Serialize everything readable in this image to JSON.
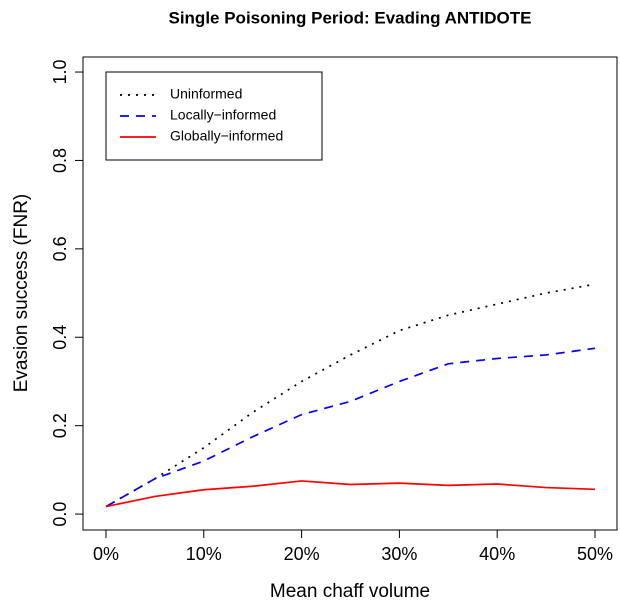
{
  "chart_data": {
    "type": "line",
    "title": "Single Poisoning Period: Evading ANTIDOTE",
    "x_label": "Mean chaff volume",
    "y_label": "Evasion success (FNR)",
    "x": [
      0,
      5,
      10,
      15,
      20,
      25,
      30,
      35,
      40,
      45,
      50
    ],
    "series": [
      {
        "name": "Uninformed",
        "color": "#000000",
        "style": "dotted",
        "values": [
          0.017,
          0.08,
          0.15,
          0.23,
          0.3,
          0.36,
          0.415,
          0.45,
          0.475,
          0.5,
          0.52
        ]
      },
      {
        "name": "Locally−informed",
        "color": "#0000ff",
        "style": "dashed",
        "values": [
          0.017,
          0.08,
          0.12,
          0.175,
          0.225,
          0.255,
          0.3,
          0.34,
          0.352,
          0.36,
          0.375
        ]
      },
      {
        "name": "Globally−informed",
        "color": "#ff0000",
        "style": "solid",
        "values": [
          0.017,
          0.04,
          0.055,
          0.063,
          0.075,
          0.067,
          0.07,
          0.065,
          0.068,
          0.06,
          0.056
        ]
      }
    ],
    "xlim": [
      -2.35,
      52.25
    ],
    "ylim": [
      -0.036,
      1.034
    ],
    "xticks": [
      {
        "value": 0,
        "label": "0%"
      },
      {
        "value": 10,
        "label": "10%"
      },
      {
        "value": 20,
        "label": "20%"
      },
      {
        "value": 30,
        "label": "30%"
      },
      {
        "value": 40,
        "label": "40%"
      },
      {
        "value": 50,
        "label": "50%"
      }
    ],
    "yticks": [
      {
        "value": 0,
        "label": "0.0"
      },
      0.2,
      0.4,
      0.6,
      0.8,
      {
        "value": 1,
        "label": "1.0"
      }
    ],
    "legend": "top-left"
  }
}
